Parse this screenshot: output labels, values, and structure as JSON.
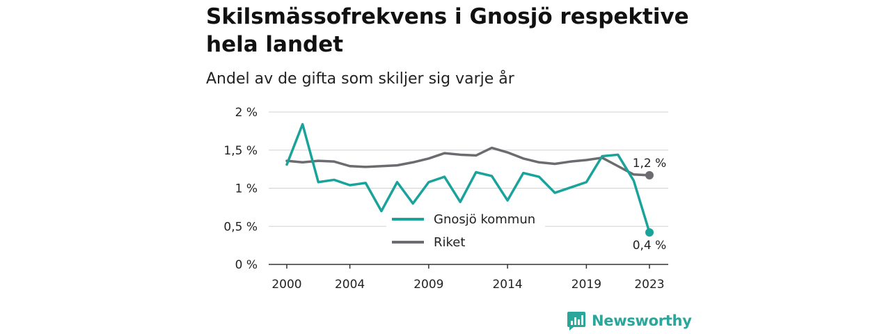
{
  "header": {
    "title": "Skilsmässofrekvens i Gnosjö respektive hela landet",
    "subtitle": "Andel av de gifta som skiljer sig varje år"
  },
  "brand": {
    "name": "Newsworthy",
    "icon": "newsworthy-logo-icon",
    "color": "#2ba69b"
  },
  "chart_data": {
    "type": "line",
    "title": "Skilsmässofrekvens i Gnosjö respektive hela landet",
    "subtitle": "Andel av de gifta som skiljer sig varje år",
    "xlabel": "",
    "ylabel": "",
    "x": [
      2000,
      2001,
      2002,
      2003,
      2004,
      2005,
      2006,
      2007,
      2008,
      2009,
      2010,
      2011,
      2012,
      2013,
      2014,
      2015,
      2016,
      2017,
      2018,
      2019,
      2020,
      2021,
      2022,
      2023
    ],
    "xlim": [
      2000,
      2023
    ],
    "ylim": [
      0,
      2
    ],
    "x_ticks": [
      2000,
      2004,
      2009,
      2014,
      2019,
      2023
    ],
    "x_tick_labels": [
      "2000",
      "2004",
      "2009",
      "2014",
      "2019",
      "2023"
    ],
    "y_ticks": [
      0,
      0.5,
      1,
      1.5,
      2
    ],
    "y_tick_labels": [
      "0 %",
      "0,5 %",
      "1 %",
      "1,5 %",
      "2 %"
    ],
    "grid": "horizontal",
    "legend_position": "center",
    "series": [
      {
        "name": "Gnosjö kommun",
        "color": "#1aa39a",
        "values": [
          1.31,
          1.84,
          1.08,
          1.11,
          1.04,
          1.07,
          0.7,
          1.08,
          0.8,
          1.08,
          1.15,
          0.82,
          1.21,
          1.16,
          0.84,
          1.2,
          1.15,
          0.94,
          1.01,
          1.08,
          1.42,
          1.44,
          1.1,
          0.42
        ],
        "end_label": "0,4 %"
      },
      {
        "name": "Riket",
        "color": "#6c6c70",
        "values": [
          1.36,
          1.34,
          1.36,
          1.35,
          1.29,
          1.28,
          1.29,
          1.3,
          1.34,
          1.39,
          1.46,
          1.44,
          1.43,
          1.53,
          1.47,
          1.39,
          1.34,
          1.32,
          1.35,
          1.37,
          1.4,
          1.29,
          1.18,
          1.17
        ],
        "end_label": "1,2 %"
      }
    ]
  }
}
